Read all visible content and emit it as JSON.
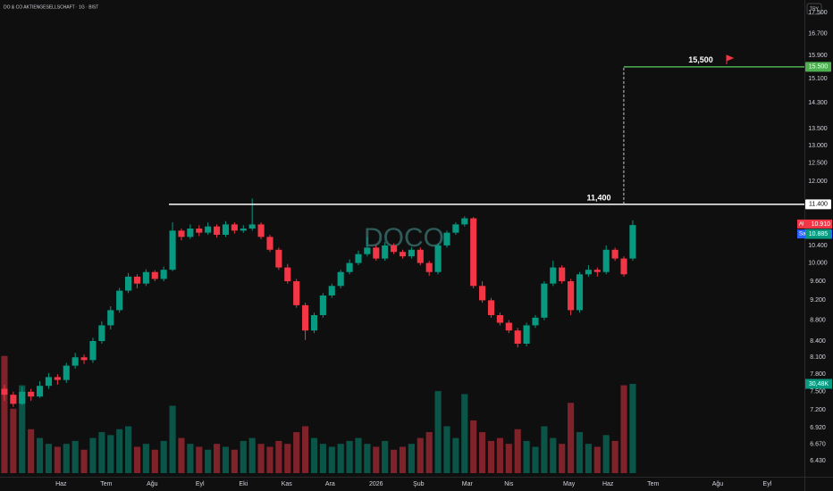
{
  "chart_data": {
    "type": "candlestick",
    "title": "DO & CO AKTIENGESELLSCHAFT · 1G · BIST",
    "currency": "TRY",
    "watermark": "DOCO",
    "log_scale": true,
    "up_color": "#089981",
    "down_color": "#f23645",
    "ylim": [
      6.43,
      17.5
    ],
    "yticks": [
      {
        "value": 17.5,
        "label": "17.500"
      },
      {
        "value": 16.7,
        "label": "16.700"
      },
      {
        "value": 15.9,
        "label": "15.900"
      },
      {
        "value": 15.1,
        "label": "15.100"
      },
      {
        "value": 14.3,
        "label": "14.300"
      },
      {
        "value": 13.5,
        "label": "13.500"
      },
      {
        "value": 13,
        "label": "13.000"
      },
      {
        "value": 12.5,
        "label": "12.500"
      },
      {
        "value": 12,
        "label": "12.000"
      },
      {
        "value": 10.4,
        "label": "10.400"
      },
      {
        "value": 10,
        "label": "10.000"
      },
      {
        "value": 9.6,
        "label": "9.600"
      },
      {
        "value": 9.2,
        "label": "9.200"
      },
      {
        "value": 8.8,
        "label": "8.800"
      },
      {
        "value": 8.4,
        "label": "8.400"
      },
      {
        "value": 8.1,
        "label": "8.100"
      },
      {
        "value": 7.8,
        "label": "7.800"
      },
      {
        "value": 7.5,
        "label": "7.500"
      },
      {
        "value": 7.2,
        "label": "7.200"
      },
      {
        "value": 6.92,
        "label": "6.920"
      },
      {
        "value": 6.67,
        "label": "6.670"
      },
      {
        "value": 6.43,
        "label": "6.430"
      }
    ],
    "xlim": [
      -0.5,
      90.4
    ],
    "xticks": [
      {
        "value": 6.4,
        "label": "Haz"
      },
      {
        "value": 11.5,
        "label": "Tem"
      },
      {
        "value": 16.7,
        "label": "Ağu"
      },
      {
        "value": 22.1,
        "label": "Eyl"
      },
      {
        "value": 27,
        "label": "Eki"
      },
      {
        "value": 31.9,
        "label": "Kas"
      },
      {
        "value": 36.8,
        "label": "Ara"
      },
      {
        "value": 42,
        "label": "2026"
      },
      {
        "value": 46.8,
        "label": "Şub"
      },
      {
        "value": 52.3,
        "label": "Mar"
      },
      {
        "value": 57,
        "label": "Nis"
      },
      {
        "value": 63.8,
        "label": "May"
      },
      {
        "value": 68.2,
        "label": "Haz"
      },
      {
        "value": 73.3,
        "label": "Tem"
      },
      {
        "value": 80.6,
        "label": "Ağu"
      },
      {
        "value": 86.2,
        "label": "Eyl"
      }
    ],
    "candles": [
      [
        7.55,
        7.62,
        7.35,
        7.45
      ],
      [
        7.45,
        7.5,
        7.25,
        7.3
      ],
      [
        7.3,
        7.58,
        7.28,
        7.5
      ],
      [
        7.5,
        7.55,
        7.35,
        7.42
      ],
      [
        7.42,
        7.68,
        7.4,
        7.6
      ],
      [
        7.6,
        7.82,
        7.55,
        7.75
      ],
      [
        7.75,
        7.8,
        7.62,
        7.7
      ],
      [
        7.7,
        8.0,
        7.65,
        7.95
      ],
      [
        7.95,
        8.18,
        7.9,
        8.1
      ],
      [
        8.1,
        8.15,
        7.98,
        8.05
      ],
      [
        8.05,
        8.46,
        8.0,
        8.4
      ],
      [
        8.4,
        8.78,
        8.35,
        8.7
      ],
      [
        8.7,
        9.08,
        8.62,
        9.0
      ],
      [
        9.0,
        9.46,
        8.95,
        9.4
      ],
      [
        9.4,
        9.78,
        9.35,
        9.7
      ],
      [
        9.7,
        9.75,
        9.45,
        9.55
      ],
      [
        9.55,
        9.86,
        9.5,
        9.8
      ],
      [
        9.8,
        9.84,
        9.6,
        9.65
      ],
      [
        9.65,
        9.92,
        9.6,
        9.85
      ],
      [
        9.85,
        10.95,
        9.82,
        10.75
      ],
      [
        10.75,
        10.8,
        10.52,
        10.6
      ],
      [
        10.6,
        10.9,
        10.55,
        10.8
      ],
      [
        10.8,
        10.88,
        10.62,
        10.7
      ],
      [
        10.7,
        10.95,
        10.65,
        10.85
      ],
      [
        10.85,
        10.9,
        10.58,
        10.65
      ],
      [
        10.65,
        10.98,
        10.6,
        10.9
      ],
      [
        10.9,
        10.95,
        10.68,
        10.75
      ],
      [
        10.75,
        10.88,
        10.7,
        10.8
      ],
      [
        10.8,
        11.55,
        10.75,
        10.9
      ],
      [
        10.9,
        10.95,
        10.55,
        10.6
      ],
      [
        10.6,
        10.65,
        10.25,
        10.3
      ],
      [
        10.3,
        10.35,
        9.85,
        9.9
      ],
      [
        9.9,
        9.98,
        9.55,
        9.6
      ],
      [
        9.6,
        9.65,
        9.05,
        9.1
      ],
      [
        9.1,
        9.15,
        8.42,
        8.6
      ],
      [
        8.6,
        8.95,
        8.55,
        8.9
      ],
      [
        8.9,
        9.35,
        8.85,
        9.3
      ],
      [
        9.3,
        9.55,
        9.25,
        9.5
      ],
      [
        9.5,
        9.85,
        9.45,
        9.8
      ],
      [
        9.8,
        10.08,
        9.75,
        10.0
      ],
      [
        10.0,
        10.28,
        9.95,
        10.2
      ],
      [
        10.2,
        10.6,
        10.15,
        10.35
      ],
      [
        10.35,
        10.4,
        10.05,
        10.1
      ],
      [
        10.1,
        10.48,
        10.05,
        10.4
      ],
      [
        10.4,
        10.45,
        10.2,
        10.25
      ],
      [
        10.25,
        10.3,
        10.1,
        10.15
      ],
      [
        10.15,
        10.36,
        10.1,
        10.3
      ],
      [
        10.3,
        10.35,
        9.95,
        10.0
      ],
      [
        10.0,
        10.05,
        9.72,
        9.8
      ],
      [
        9.8,
        10.45,
        9.75,
        10.4
      ],
      [
        10.4,
        10.75,
        10.35,
        10.7
      ],
      [
        10.7,
        10.95,
        10.65,
        10.9
      ],
      [
        10.9,
        11.1,
        10.85,
        11.05
      ],
      [
        11.05,
        11.08,
        9.45,
        9.5
      ],
      [
        9.5,
        9.6,
        9.15,
        9.2
      ],
      [
        9.2,
        9.25,
        8.85,
        8.9
      ],
      [
        8.9,
        8.95,
        8.7,
        8.75
      ],
      [
        8.75,
        8.8,
        8.55,
        8.6
      ],
      [
        8.6,
        8.65,
        8.28,
        8.35
      ],
      [
        8.35,
        8.75,
        8.3,
        8.7
      ],
      [
        8.7,
        8.9,
        8.65,
        8.85
      ],
      [
        8.85,
        9.6,
        8.8,
        9.55
      ],
      [
        9.55,
        10.05,
        9.5,
        9.9
      ],
      [
        9.9,
        9.95,
        9.55,
        9.6
      ],
      [
        9.6,
        9.65,
        8.9,
        9.0
      ],
      [
        9.0,
        9.8,
        8.95,
        9.75
      ],
      [
        9.75,
        9.95,
        9.7,
        9.85
      ],
      [
        9.85,
        9.9,
        9.7,
        9.8
      ],
      [
        9.8,
        10.4,
        9.75,
        10.3
      ],
      [
        10.3,
        10.35,
        10.05,
        10.1
      ],
      [
        10.1,
        10.15,
        9.7,
        9.75
      ],
      [
        10.1,
        11.0,
        10.05,
        10.885
      ]
    ],
    "last_price_label": "10.885",
    "volume_ylim": [
      0,
      161.5
    ],
    "volume": [
      40,
      22,
      30,
      15,
      12,
      10,
      9,
      10,
      11,
      8,
      12,
      14,
      13,
      15,
      16,
      9,
      10,
      8,
      11,
      23,
      12,
      10,
      9,
      8,
      10,
      9,
      8,
      11,
      12,
      10,
      9,
      11,
      10,
      14,
      16,
      12,
      10,
      9,
      10,
      11,
      12,
      10,
      9,
      11,
      8,
      9,
      10,
      12,
      14,
      28,
      16,
      12,
      27,
      18,
      14,
      11,
      12,
      10,
      15,
      11,
      9,
      16,
      12,
      10,
      24,
      14,
      10,
      9,
      13,
      11,
      30,
      30.48
    ],
    "last_volume_label": "30,48K",
    "levels": [
      {
        "value": 11.4,
        "label": "11,400",
        "axis_label": "11.400",
        "color": "#ffffff"
      },
      {
        "value": 15.5,
        "label": "15,500",
        "axis_label": "15.500",
        "color": "#4caf50"
      }
    ],
    "quotes": [
      {
        "name": "Al",
        "value": 10.91,
        "label": "10.910",
        "color": "#f23645"
      },
      {
        "name": "Sat",
        "value": 10.885,
        "label": "10.885",
        "color": "#2962ff"
      }
    ]
  }
}
